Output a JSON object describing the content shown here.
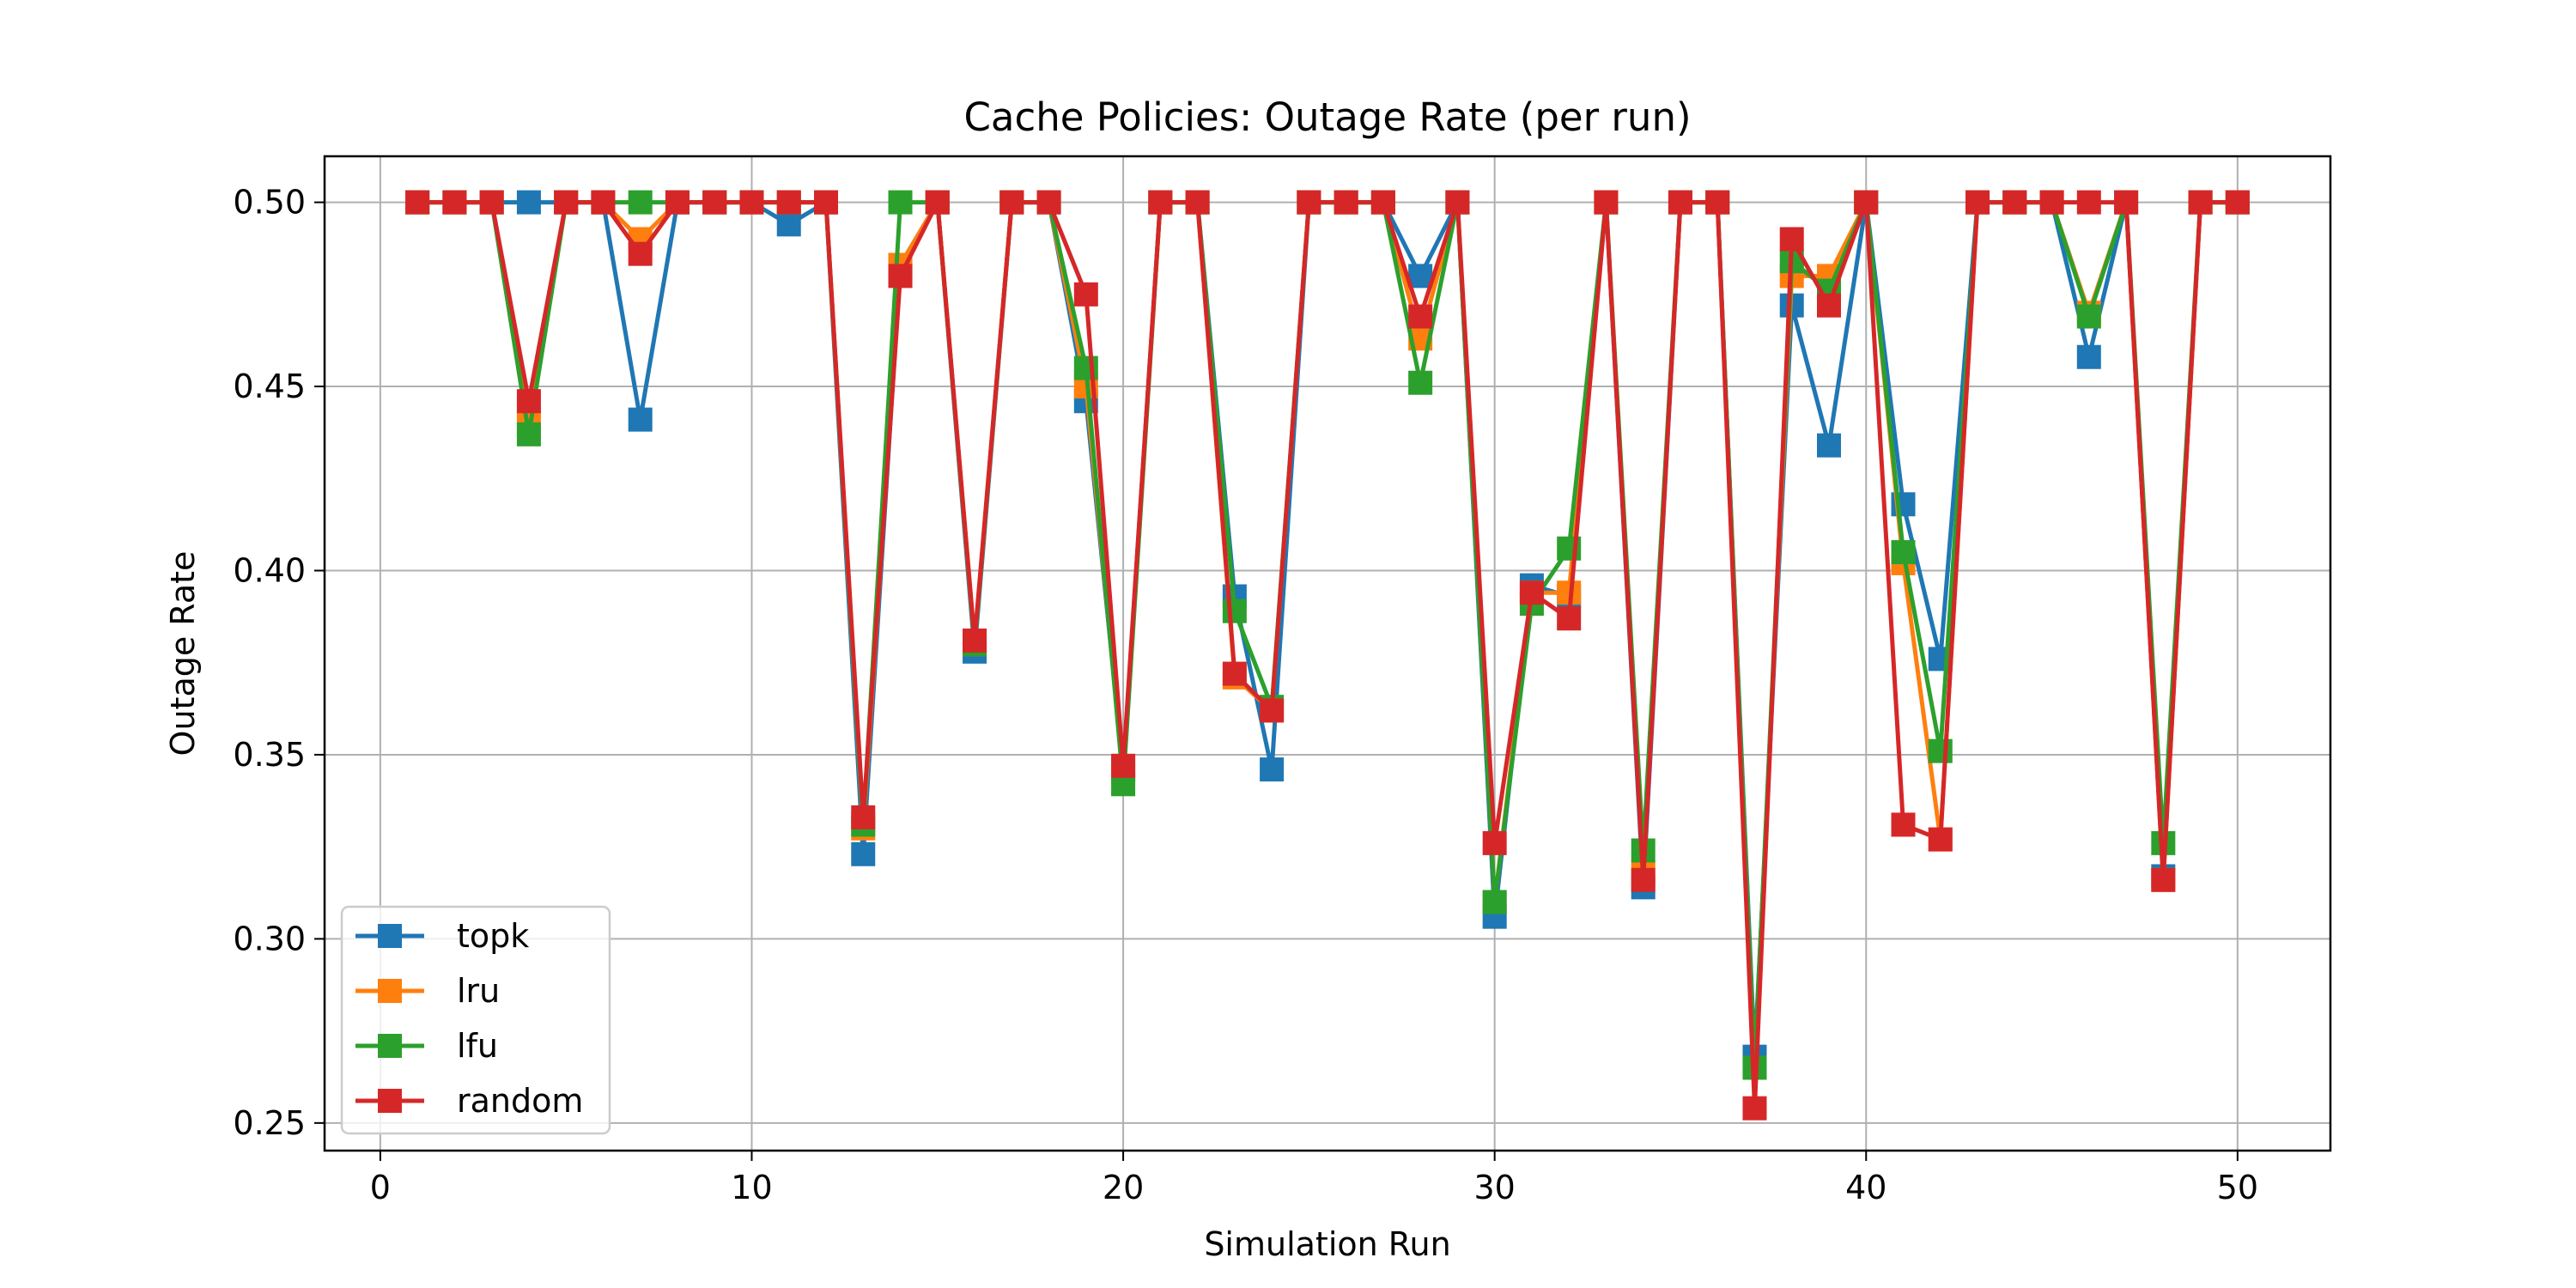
{
  "chart_data": {
    "type": "line",
    "title": "Cache Policies: Outage Rate (per run)",
    "xlabel": "Simulation Run",
    "ylabel": "Outage Rate",
    "xlim": [
      -1.5,
      52.5
    ],
    "ylim": [
      0.2425,
      0.5125
    ],
    "xticks": [
      0,
      10,
      20,
      30,
      40,
      50
    ],
    "xtick_labels": [
      "0",
      "10",
      "20",
      "30",
      "40",
      "50"
    ],
    "yticks": [
      0.25,
      0.3,
      0.35,
      0.4,
      0.45,
      0.5
    ],
    "ytick_labels": [
      "0.25",
      "0.30",
      "0.35",
      "0.40",
      "0.45",
      "0.50"
    ],
    "grid": true,
    "legend_position": "lower-left",
    "marker": "square",
    "x": [
      1,
      2,
      3,
      4,
      5,
      6,
      7,
      8,
      9,
      10,
      11,
      12,
      13,
      14,
      15,
      16,
      17,
      18,
      19,
      20,
      21,
      22,
      23,
      24,
      25,
      26,
      27,
      28,
      29,
      30,
      31,
      32,
      33,
      34,
      35,
      36,
      37,
      38,
      39,
      40,
      41,
      42,
      43,
      44,
      45,
      46,
      47,
      48,
      49,
      50
    ],
    "series": [
      {
        "name": "topk",
        "color": "#1f77b4",
        "values": [
          0.5,
          0.5,
          0.5,
          0.5,
          0.5,
          0.5,
          0.441,
          0.5,
          0.5,
          0.5,
          0.494,
          0.5,
          0.323,
          0.483,
          0.5,
          0.378,
          0.5,
          0.5,
          0.446,
          0.346,
          0.5,
          0.5,
          0.393,
          0.346,
          0.5,
          0.5,
          0.5,
          0.48,
          0.5,
          0.306,
          0.396,
          0.393,
          0.5,
          0.314,
          0.5,
          0.5,
          0.268,
          0.472,
          0.434,
          0.5,
          0.418,
          0.376,
          0.5,
          0.5,
          0.5,
          0.458,
          0.5,
          0.317,
          0.5,
          0.5
        ]
      },
      {
        "name": "lru",
        "color": "#ff7f0e",
        "values": [
          0.5,
          0.5,
          0.5,
          0.44,
          0.5,
          0.5,
          0.49,
          0.5,
          0.5,
          0.5,
          0.5,
          0.5,
          0.33,
          0.483,
          0.5,
          0.38,
          0.5,
          0.5,
          0.45,
          0.345,
          0.5,
          0.5,
          0.371,
          0.362,
          0.5,
          0.5,
          0.5,
          0.463,
          0.5,
          0.31,
          0.394,
          0.394,
          0.5,
          0.318,
          0.5,
          0.5,
          0.265,
          0.48,
          0.48,
          0.5,
          0.402,
          0.327,
          0.5,
          0.5,
          0.5,
          0.47,
          0.5,
          0.316,
          0.5,
          0.5
        ]
      },
      {
        "name": "lfu",
        "color": "#2ca02c",
        "values": [
          0.5,
          0.5,
          0.5,
          0.437,
          0.5,
          0.5,
          0.5,
          0.5,
          0.5,
          0.5,
          0.5,
          0.5,
          0.331,
          0.5,
          0.5,
          0.38,
          0.5,
          0.5,
          0.455,
          0.342,
          0.5,
          0.5,
          0.389,
          0.363,
          0.5,
          0.5,
          0.5,
          0.451,
          0.5,
          0.31,
          0.391,
          0.406,
          0.5,
          0.324,
          0.5,
          0.5,
          0.265,
          0.484,
          0.476,
          0.5,
          0.405,
          0.351,
          0.5,
          0.5,
          0.5,
          0.469,
          0.5,
          0.326,
          0.5,
          0.5
        ]
      },
      {
        "name": "random",
        "color": "#d62728",
        "values": [
          0.5,
          0.5,
          0.5,
          0.446,
          0.5,
          0.5,
          0.486,
          0.5,
          0.5,
          0.5,
          0.5,
          0.5,
          0.333,
          0.48,
          0.5,
          0.381,
          0.5,
          0.5,
          0.475,
          0.347,
          0.5,
          0.5,
          0.372,
          0.362,
          0.5,
          0.5,
          0.5,
          0.469,
          0.5,
          0.326,
          0.394,
          0.387,
          0.5,
          0.316,
          0.5,
          0.5,
          0.254,
          0.49,
          0.472,
          0.5,
          0.331,
          0.327,
          0.5,
          0.5,
          0.5,
          0.5,
          0.5,
          0.316,
          0.5,
          0.5
        ]
      }
    ]
  }
}
